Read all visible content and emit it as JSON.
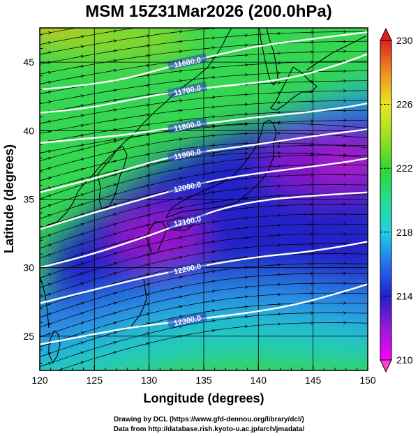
{
  "title": "MSM 15Z31Mar2026 (200.0hPa)",
  "xlabel": "Longitude (degrees)",
  "ylabel": "Latitude  (degrees)",
  "credits": [
    "Drawing by DCL (https://www.gfd-dennou.org/library/dcl/)",
    "Data from http://database.rish.kyoto-u.ac.jp/arch/jmadata/"
  ],
  "chart_data": {
    "type": "heatmap",
    "xlim": [
      120,
      150
    ],
    "ylim": [
      22.5,
      47.5
    ],
    "x_ticks": [
      120,
      125,
      130,
      135,
      140,
      145,
      150
    ],
    "y_ticks": [
      25,
      30,
      35,
      40,
      45
    ],
    "x_tick_labels": [
      "120",
      "125",
      "130",
      "135",
      "140",
      "145",
      "150"
    ],
    "y_tick_labels": [
      "25",
      "30",
      "35",
      "40",
      "45"
    ],
    "grid": true,
    "colorbar": {
      "min": 210,
      "max": 230,
      "ticks": [
        210,
        214,
        218,
        222,
        226,
        230
      ],
      "tick_labels": [
        "210",
        "214",
        "218",
        "222",
        "226",
        "230"
      ]
    },
    "contours": [
      {
        "label": "11600.0",
        "points": [
          [
            120,
            43.0
          ],
          [
            124,
            43.3
          ],
          [
            128,
            43.8
          ],
          [
            132,
            44.7
          ],
          [
            136,
            45.5
          ],
          [
            140,
            46.2
          ],
          [
            144,
            46.6
          ],
          [
            148,
            47.0
          ],
          [
            150,
            47.2
          ]
        ]
      },
      {
        "label": "11700.0",
        "points": [
          [
            120,
            41.3
          ],
          [
            124,
            41.6
          ],
          [
            128,
            42.2
          ],
          [
            132,
            42.8
          ],
          [
            136,
            43.2
          ],
          [
            140,
            43.5
          ],
          [
            144,
            44.0
          ],
          [
            148,
            45.0
          ],
          [
            150,
            45.6
          ]
        ]
      },
      {
        "label": "11800.0",
        "points": [
          [
            120,
            39.1
          ],
          [
            124,
            39.4
          ],
          [
            128,
            39.7
          ],
          [
            132,
            40.2
          ],
          [
            136,
            40.6
          ],
          [
            140,
            41.0
          ],
          [
            144,
            41.3
          ],
          [
            148,
            41.7
          ],
          [
            150,
            42.0
          ]
        ]
      },
      {
        "label": "11900.0",
        "points": [
          [
            120,
            35.5
          ],
          [
            124,
            36.3
          ],
          [
            128,
            37.2
          ],
          [
            132,
            38.1
          ],
          [
            136,
            38.6
          ],
          [
            140,
            39.0
          ],
          [
            144,
            39.5
          ],
          [
            148,
            39.9
          ],
          [
            150,
            40.1
          ]
        ]
      },
      {
        "label": "12000.0",
        "points": [
          [
            120,
            32.8
          ],
          [
            124,
            33.8
          ],
          [
            128,
            34.7
          ],
          [
            132,
            35.6
          ],
          [
            136,
            36.4
          ],
          [
            140,
            36.9
          ],
          [
            144,
            37.3
          ],
          [
            148,
            37.7
          ],
          [
            150,
            38.0
          ]
        ]
      },
      {
        "label": "12100.0",
        "points": [
          [
            120,
            30.0
          ],
          [
            124,
            30.8
          ],
          [
            128,
            31.8
          ],
          [
            132,
            32.9
          ],
          [
            136,
            34.2
          ],
          [
            140,
            34.9
          ],
          [
            144,
            35.2
          ],
          [
            148,
            35.4
          ],
          [
            150,
            35.5
          ]
        ]
      },
      {
        "label": "12200.0",
        "points": [
          [
            120,
            27.4
          ],
          [
            124,
            28.2
          ],
          [
            128,
            29.0
          ],
          [
            132,
            29.7
          ],
          [
            136,
            30.3
          ],
          [
            140,
            30.8
          ],
          [
            144,
            31.1
          ],
          [
            148,
            31.6
          ],
          [
            150,
            31.9
          ]
        ]
      },
      {
        "label": "12300.0",
        "points": [
          [
            120,
            24.4
          ],
          [
            124,
            25.0
          ],
          [
            128,
            25.6
          ],
          [
            132,
            26.0
          ],
          [
            136,
            26.4
          ],
          [
            140,
            26.8
          ],
          [
            144,
            27.4
          ],
          [
            148,
            28.3
          ],
          [
            150,
            28.8
          ]
        ]
      }
    ]
  }
}
